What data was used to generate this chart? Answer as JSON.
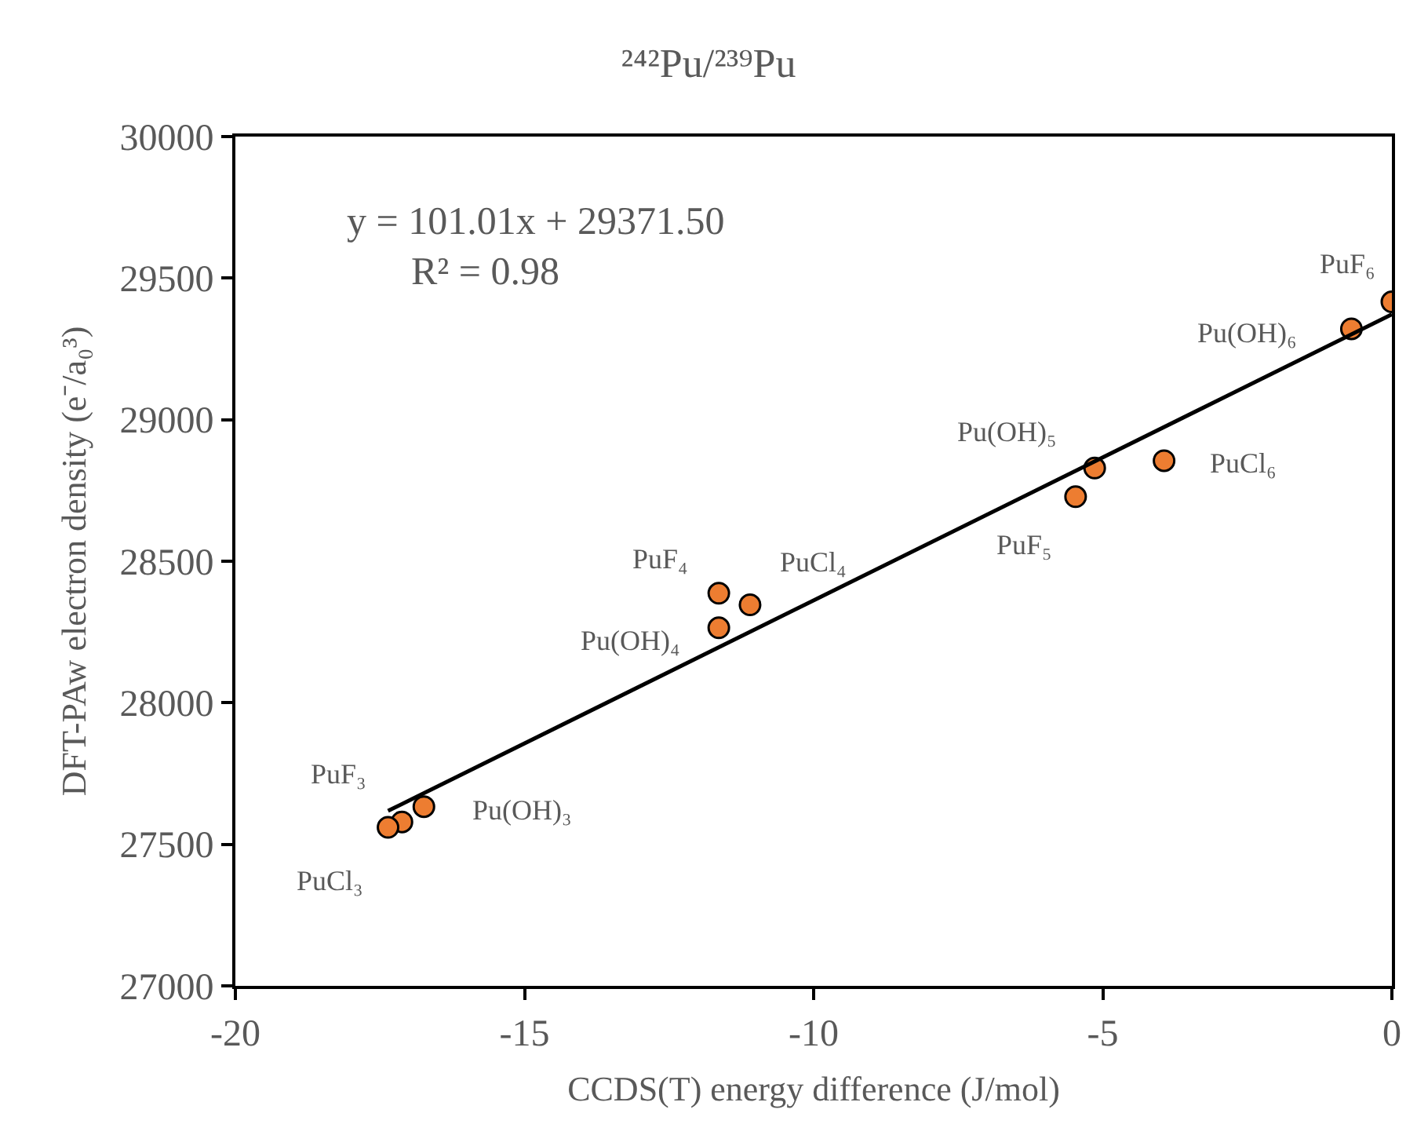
{
  "chart_data": {
    "type": "scatter",
    "title": "²⁴²Pu/²³⁹Pu",
    "xlabel": "CCDS(T) energy difference (J/mol)",
    "ylabel": "DFT-PAw electron density (e⁻/a₀³)",
    "x": [
      0,
      -0.7,
      -5.14,
      -3.94,
      -5.47,
      -11.64,
      -11.1,
      -11.64,
      -16.74,
      -17.12,
      -17.36
    ],
    "series": [
      {
        "color": "#ed7d31",
        "marker": "circle",
        "values": [
          29416,
          29321,
          28829,
          28855,
          28728,
          28387,
          28346,
          28265,
          27633,
          27579,
          27560
        ]
      },
      {
        "type": "line",
        "color": "#000000",
        "marker": "none",
        "line_style": "solid",
        "x": [
          -17.36,
          0
        ],
        "values": [
          27618,
          29372
        ]
      }
    ],
    "annotations": [
      "y = 101.01x + 29371.50",
      "R² = 0.98",
      {
        "text": "PuF₆",
        "x": 0,
        "y": 29416
      },
      {
        "text": "Pu(OH)₆",
        "x": -0.7,
        "y": 29321
      },
      {
        "text": "Pu(OH)₅",
        "x": -5.14,
        "y": 28829
      },
      {
        "text": "PuCl₆",
        "x": -3.94,
        "y": 28855
      },
      {
        "text": "PuF₅",
        "x": -5.47,
        "y": 28728
      },
      {
        "text": "PuF₄",
        "x": -11.64,
        "y": 28387
      },
      {
        "text": "PuCl₄",
        "x": -11.1,
        "y": 28346
      },
      {
        "text": "Pu(OH)₄",
        "x": -11.64,
        "y": 28265
      },
      {
        "text": "Pu(OH)₃",
        "x": -16.74,
        "y": 27633
      },
      {
        "text": "PuF₃",
        "x": -17.12,
        "y": 27579
      },
      {
        "text": "PuCl₃",
        "x": -17.36,
        "y": 27560
      }
    ],
    "xlim": [
      -20,
      0
    ],
    "xticks": [
      -20,
      -15,
      -10,
      -5,
      0
    ],
    "ylim": [
      27000,
      30000
    ],
    "yticks": [
      27000,
      27500,
      28000,
      28500,
      29000,
      29500,
      30000
    ],
    "grid": false,
    "legend": false
  }
}
